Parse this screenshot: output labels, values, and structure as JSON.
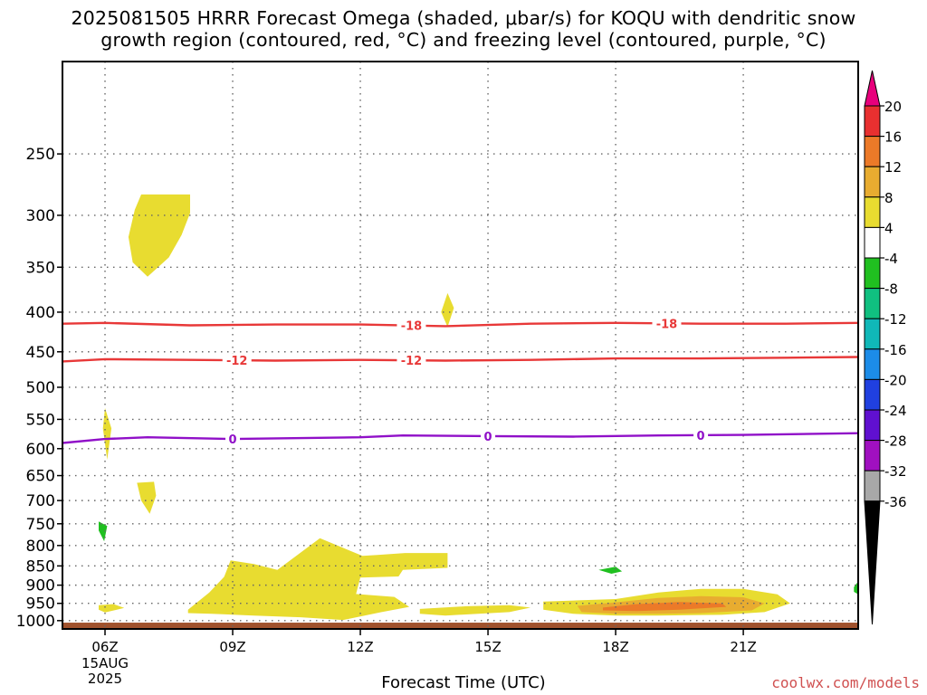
{
  "title": {
    "line1": "2025081505 HRRR Forecast Omega (shaded, μbar/s) for KOQU with dendritic snow",
    "line2": "growth region (contoured, red, °C) and freezing level (contoured, purple, °C)"
  },
  "watermark": "coolwx.com/models",
  "chart_data": {
    "type": "heatmap",
    "xlabel": "Forecast Time (UTC)",
    "x_range_hours": [
      5,
      23.7
    ],
    "x_ticks": [
      {
        "hour": 6,
        "label": "06Z",
        "sub": [
          "15AUG",
          "2025"
        ]
      },
      {
        "hour": 9,
        "label": "09Z"
      },
      {
        "hour": 12,
        "label": "12Z"
      },
      {
        "hour": 15,
        "label": "15Z"
      },
      {
        "hour": 18,
        "label": "18Z"
      },
      {
        "hour": 21,
        "label": "21Z"
      }
    ],
    "y_axis": "pressure (hPa), log scale, inverted",
    "y_range": [
      1025,
      190
    ],
    "y_ticks": [
      250,
      300,
      350,
      400,
      450,
      500,
      550,
      600,
      650,
      700,
      750,
      800,
      850,
      900,
      950,
      1000
    ],
    "grid": true,
    "colorbar": {
      "labels": [
        "20",
        "16",
        "12",
        "8",
        "4",
        "-4",
        "-8",
        "-12",
        "-16",
        "-20",
        "-24",
        "-28",
        "-32",
        "-36"
      ],
      "colors": [
        "#e8007c",
        "#e83030",
        "#ec7a28",
        "#e8ac30",
        "#e8dc30",
        "#ffffff",
        "#20c020",
        "#10c080",
        "#10b8b8",
        "#1c8ce8",
        "#2040e0",
        "#6010d0",
        "#a010c0",
        "#a8a8a8",
        "#000000"
      ]
    },
    "contours": [
      {
        "label": "-18",
        "color": "#e83838",
        "points": [
          [
            5,
            414
          ],
          [
            6,
            413
          ],
          [
            8,
            416
          ],
          [
            10,
            415
          ],
          [
            12,
            415
          ],
          [
            14,
            417
          ],
          [
            16,
            414
          ],
          [
            18,
            413
          ],
          [
            20,
            414
          ],
          [
            22,
            414
          ],
          [
            23.7,
            413
          ]
        ],
        "label_hours": [
          13.2,
          19.2
        ]
      },
      {
        "label": "-12",
        "color": "#e83838",
        "points": [
          [
            5,
            463
          ],
          [
            6,
            460
          ],
          [
            8,
            461
          ],
          [
            10,
            462
          ],
          [
            12,
            461
          ],
          [
            14,
            462
          ],
          [
            16,
            461
          ],
          [
            18,
            459
          ],
          [
            20,
            459
          ],
          [
            22,
            458
          ],
          [
            23.7,
            457
          ]
        ],
        "label_hours": [
          9.1,
          13.2
        ]
      },
      {
        "label": "0",
        "color": "#9010c8",
        "points": [
          [
            5,
            590
          ],
          [
            6,
            583
          ],
          [
            7,
            580
          ],
          [
            9,
            583
          ],
          [
            12,
            580
          ],
          [
            13,
            577
          ],
          [
            15,
            578
          ],
          [
            17,
            579
          ],
          [
            19,
            577
          ],
          [
            21,
            576
          ],
          [
            23.7,
            573
          ]
        ],
        "label_hours": [
          9,
          15,
          20
        ]
      }
    ],
    "shaded_regions": [
      {
        "color": "#e8dc30",
        "points": [
          [
            6.85,
            282
          ],
          [
            8.0,
            282
          ],
          [
            8.0,
            298
          ],
          [
            7.8,
            318
          ],
          [
            7.5,
            340
          ],
          [
            7.0,
            360
          ],
          [
            6.65,
            345
          ],
          [
            6.55,
            320
          ],
          [
            6.7,
            295
          ]
        ]
      },
      {
        "color": "#e8dc30",
        "points": [
          [
            14.05,
            378
          ],
          [
            14.2,
            395
          ],
          [
            14.05,
            418
          ],
          [
            13.9,
            400
          ]
        ]
      },
      {
        "color": "#e8dc30",
        "points": [
          [
            6.0,
            532
          ],
          [
            6.15,
            565
          ],
          [
            6.05,
            620
          ],
          [
            5.95,
            565
          ]
        ]
      },
      {
        "color": "#e8dc30",
        "points": [
          [
            6.75,
            664
          ],
          [
            7.15,
            662
          ],
          [
            7.2,
            690
          ],
          [
            7.05,
            728
          ],
          [
            6.85,
            700
          ]
        ]
      },
      {
        "color": "#e8dc30",
        "points": [
          [
            7.95,
            968
          ],
          [
            8.45,
            920
          ],
          [
            8.8,
            878
          ],
          [
            8.95,
            836
          ],
          [
            9.5,
            845
          ],
          [
            10.05,
            860
          ],
          [
            11.05,
            783
          ],
          [
            12.05,
            825
          ],
          [
            12.4,
            823
          ],
          [
            13.05,
            818
          ],
          [
            14.05,
            818
          ],
          [
            14.05,
            855
          ],
          [
            13.0,
            860
          ],
          [
            12.9,
            877
          ],
          [
            12.0,
            880
          ],
          [
            11.9,
            924
          ],
          [
            12.8,
            932
          ],
          [
            13.15,
            960
          ],
          [
            12.5,
            975
          ],
          [
            11.6,
            998
          ],
          [
            10.6,
            990
          ],
          [
            9.5,
            985
          ],
          [
            8.5,
            980
          ],
          [
            7.95,
            978
          ]
        ]
      },
      {
        "color": "#e8dc30",
        "points": [
          [
            5.85,
            955
          ],
          [
            6.2,
            952
          ],
          [
            6.45,
            963
          ],
          [
            6.0,
            976
          ],
          [
            5.85,
            968
          ]
        ]
      },
      {
        "color": "#e8dc30",
        "points": [
          [
            13.4,
            966
          ],
          [
            14.5,
            958
          ],
          [
            15.5,
            955
          ],
          [
            16.0,
            962
          ],
          [
            15.5,
            975
          ],
          [
            14.0,
            985
          ],
          [
            13.4,
            980
          ]
        ]
      },
      {
        "color": "#e8dc30",
        "points": [
          [
            16.3,
            945
          ],
          [
            17.0,
            942
          ],
          [
            18.0,
            938
          ],
          [
            19.0,
            920
          ],
          [
            20.0,
            910
          ],
          [
            21.0,
            910
          ],
          [
            21.8,
            925
          ],
          [
            22.1,
            950
          ],
          [
            21.5,
            975
          ],
          [
            20.5,
            983
          ],
          [
            19.0,
            985
          ],
          [
            18.0,
            985
          ],
          [
            17.0,
            980
          ],
          [
            16.3,
            968
          ]
        ]
      },
      {
        "color": "#e8ac30",
        "points": [
          [
            17.1,
            957
          ],
          [
            18.0,
            947
          ],
          [
            19.0,
            935
          ],
          [
            20.0,
            930
          ],
          [
            21.0,
            933
          ],
          [
            21.5,
            950
          ],
          [
            21.2,
            970
          ],
          [
            20.0,
            978
          ],
          [
            19.0,
            980
          ],
          [
            18.0,
            980
          ],
          [
            17.2,
            975
          ]
        ]
      },
      {
        "color": "#ec7a28",
        "points": [
          [
            17.7,
            962
          ],
          [
            18.5,
            952
          ],
          [
            19.5,
            946
          ],
          [
            20.5,
            950
          ],
          [
            20.6,
            960
          ],
          [
            19.5,
            968
          ],
          [
            18.5,
            972
          ],
          [
            17.7,
            970
          ]
        ]
      },
      {
        "color": "#20c020",
        "points": [
          [
            5.85,
            745
          ],
          [
            6.05,
            755
          ],
          [
            5.98,
            790
          ],
          [
            5.85,
            765
          ]
        ]
      },
      {
        "color": "#20c020",
        "points": [
          [
            17.6,
            860
          ],
          [
            18.0,
            852
          ],
          [
            18.15,
            864
          ],
          [
            17.9,
            870
          ]
        ]
      },
      {
        "color": "#20c020",
        "points": [
          [
            23.6,
            905
          ],
          [
            23.7,
            890
          ],
          [
            23.7,
            925
          ],
          [
            23.6,
            918
          ]
        ]
      }
    ],
    "surface_band": {
      "color": "#a0522d",
      "from": 1006,
      "to": 1025
    }
  }
}
